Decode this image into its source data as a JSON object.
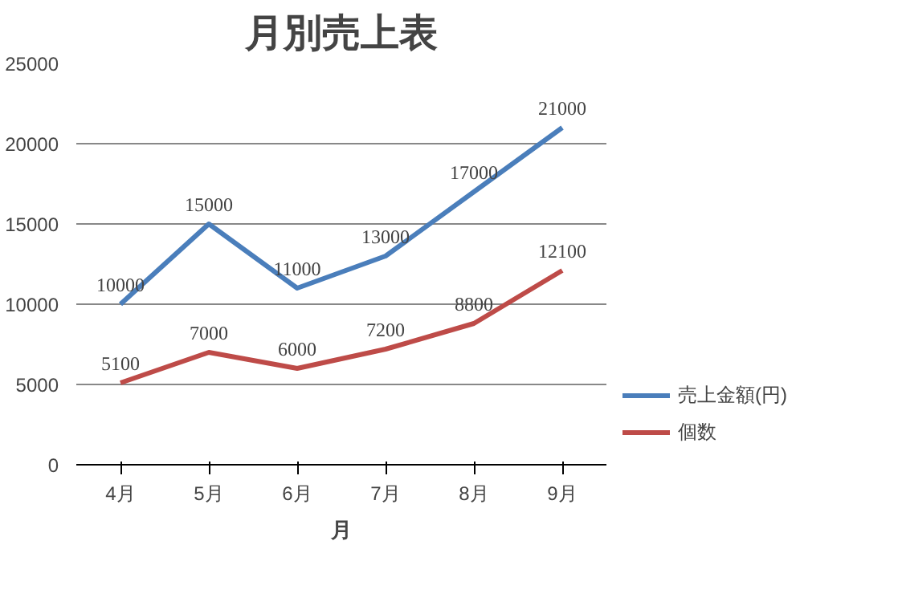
{
  "chart_data": {
    "type": "line",
    "title": "月別売上表",
    "xlabel": "月",
    "categories": [
      "4月",
      "5月",
      "6月",
      "7月",
      "8月",
      "9月"
    ],
    "series": [
      {
        "name": "売上金額(円)",
        "color": "#4a7ebb",
        "values": [
          10000,
          15000,
          11000,
          13000,
          17000,
          21000
        ]
      },
      {
        "name": "個数",
        "color": "#be4b48",
        "values": [
          5100,
          7000,
          6000,
          7200,
          8800,
          12100
        ]
      }
    ],
    "ylim": [
      0,
      25000
    ],
    "yticks": [
      0,
      5000,
      10000,
      15000,
      20000,
      25000
    ],
    "grid": "y",
    "legend": "right",
    "data_labels": true,
    "marker": "none",
    "line_style": "solid"
  }
}
